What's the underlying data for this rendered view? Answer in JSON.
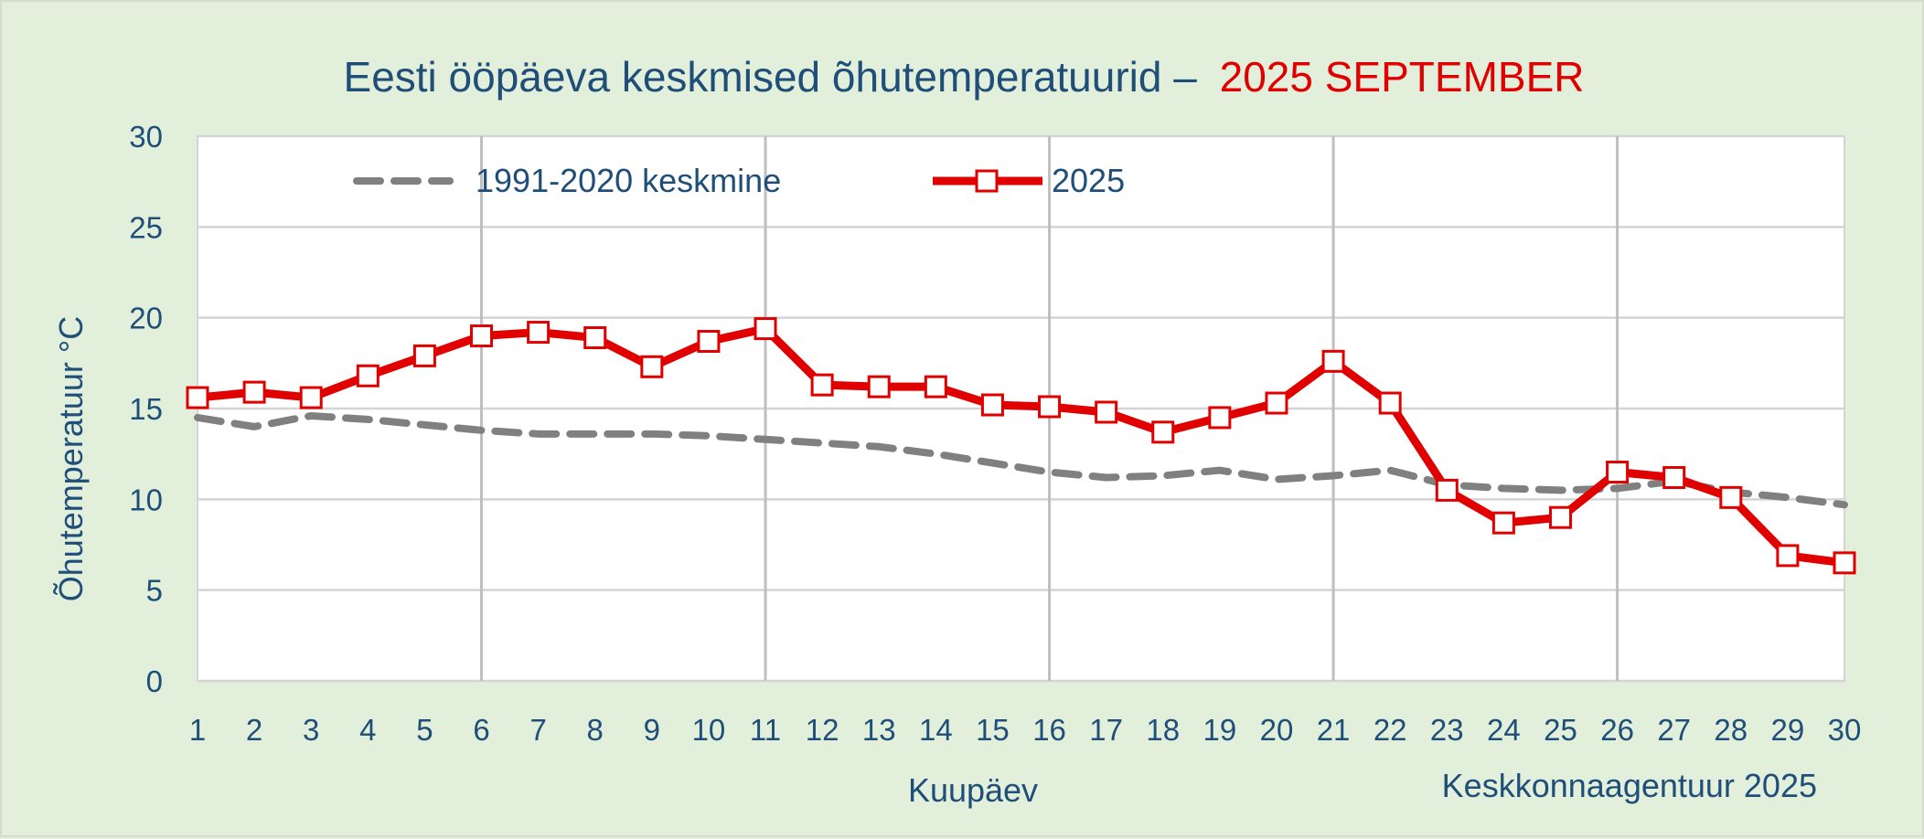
{
  "chart_data": {
    "type": "line",
    "title": "Eesti ööpäeva keskmised õhutemperatuurid –",
    "title_highlight": "2025 SEPTEMBER",
    "xlabel": "Kuupäev",
    "ylabel": "Õhutemperatuur °C",
    "credit": "Keskkonnaagentuur 2025",
    "x": [
      1,
      2,
      3,
      4,
      5,
      6,
      7,
      8,
      9,
      10,
      11,
      12,
      13,
      14,
      15,
      16,
      17,
      18,
      19,
      20,
      21,
      22,
      23,
      24,
      25,
      26,
      27,
      28,
      29,
      30
    ],
    "x_ticks": [
      "1",
      "2",
      "3",
      "4",
      "5",
      "6",
      "7",
      "8",
      "9",
      "10",
      "11",
      "12",
      "13",
      "14",
      "15",
      "16",
      "17",
      "18",
      "19",
      "20",
      "21",
      "22",
      "23",
      "24",
      "25",
      "26",
      "27",
      "28",
      "29",
      "30"
    ],
    "y_ticks": [
      "0",
      "5",
      "10",
      "15",
      "20",
      "25",
      "30"
    ],
    "ylim": [
      0,
      30
    ],
    "grid": true,
    "legend_position": "top-left",
    "series": [
      {
        "name": "1991-2020 keskmine",
        "style": "dashed",
        "color": "#808080",
        "values": [
          14.5,
          14.0,
          14.6,
          14.4,
          14.1,
          13.8,
          13.6,
          13.6,
          13.6,
          13.5,
          13.3,
          13.1,
          12.9,
          12.5,
          12.0,
          11.5,
          11.2,
          11.3,
          11.6,
          11.1,
          11.3,
          11.6,
          10.8,
          10.6,
          10.5,
          10.6,
          11.0,
          10.4,
          10.1,
          9.7
        ]
      },
      {
        "name": "2025",
        "style": "solid-markers",
        "color": "#e00000",
        "values": [
          15.6,
          15.9,
          15.6,
          16.8,
          17.9,
          19.0,
          19.2,
          18.9,
          17.3,
          18.7,
          19.4,
          16.3,
          16.2,
          16.2,
          15.2,
          15.1,
          14.8,
          13.7,
          14.5,
          15.3,
          17.6,
          15.3,
          10.5,
          8.7,
          9.0,
          11.5,
          11.2,
          10.1,
          6.9,
          6.5
        ]
      }
    ],
    "colors": {
      "title": "#1f4e79",
      "highlight": "#e00000",
      "grid": "#d4d4d4",
      "vgrid": "#bfbfbf",
      "plot_bg": "#ffffff",
      "page_bg": "#e2efda"
    }
  }
}
